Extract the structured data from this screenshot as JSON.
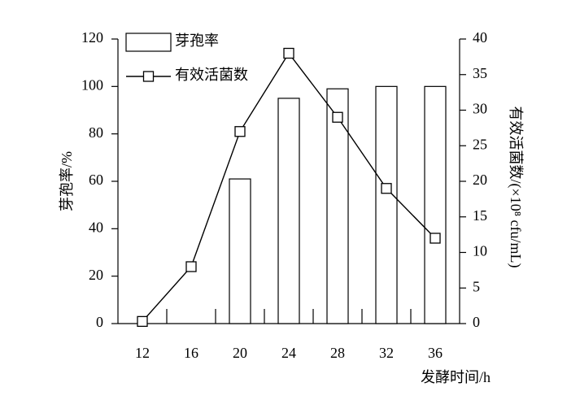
{
  "chart_data": {
    "type": "combo",
    "categories": [
      12,
      16,
      20,
      24,
      28,
      32,
      36
    ],
    "xlabel": "发酵时间/h",
    "ylabel": "芽孢率/%",
    "y2label": "有效活菌数/(×10⁸ cfu/mL)",
    "ylim": [
      0,
      120
    ],
    "yticks": [
      0,
      20,
      40,
      60,
      80,
      100,
      120
    ],
    "y2lim": [
      0,
      40
    ],
    "y2ticks": [
      0,
      5,
      10,
      15,
      20,
      25,
      30,
      35,
      40
    ],
    "legend": "upper left",
    "series": [
      {
        "name": "芽孢率",
        "type": "bar",
        "color": "#ffffff",
        "values": [
          0,
          0,
          61,
          95,
          99,
          100,
          100
        ]
      },
      {
        "name": "有效活菌数",
        "type": "line",
        "axis": "y2",
        "color": "#000000",
        "values": [
          0.3,
          8,
          27,
          38,
          29,
          19,
          12
        ]
      }
    ]
  }
}
